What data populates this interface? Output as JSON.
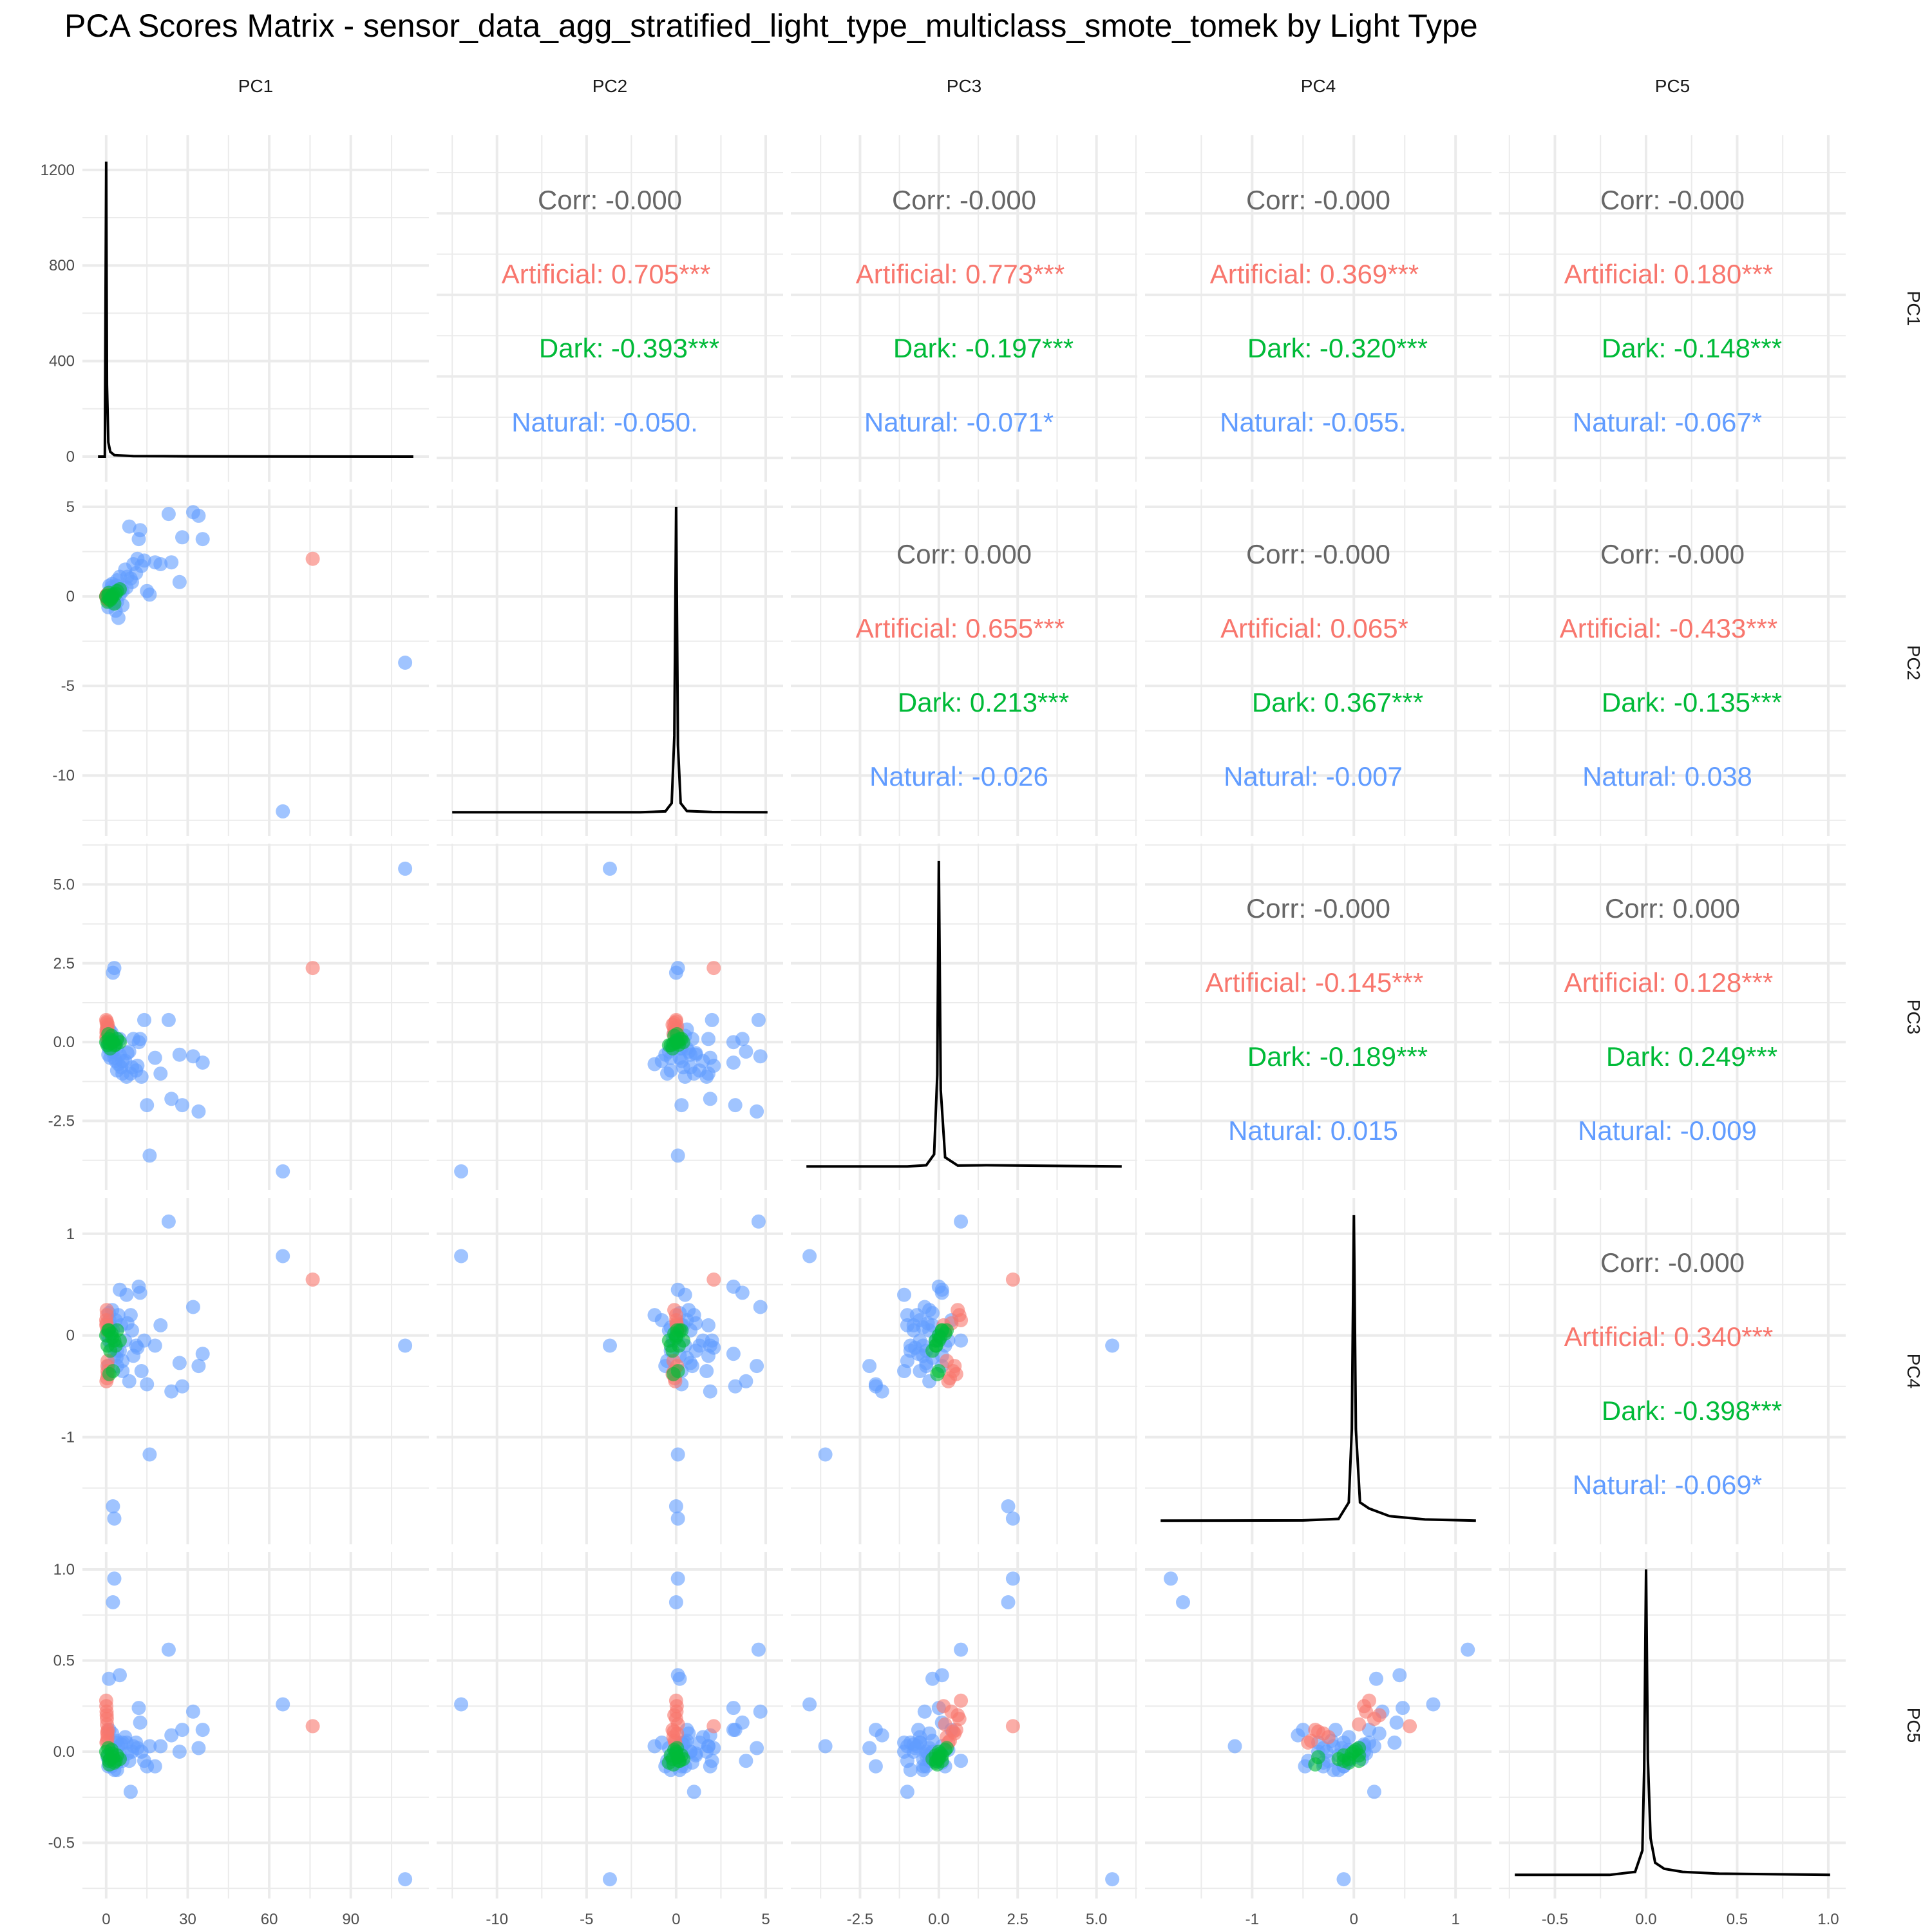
{
  "title": "PCA Scores Matrix - sensor_data_agg_stratified_light_type_multiclass_smote_tomek by Light Type",
  "variables": [
    "PC1",
    "PC2",
    "PC3",
    "PC4",
    "PC5"
  ],
  "colors": {
    "Artificial": "#F8766D",
    "Dark": "#00BA38",
    "Natural": "#619CFF",
    "corr": "#666666",
    "grid": "#EBEBEB",
    "density": "#000000"
  },
  "chart_data": {
    "type": "scatter",
    "groups": [
      "Artificial",
      "Dark",
      "Natural"
    ],
    "axes": {
      "PC1": {
        "lim": [
          -3,
          113
        ],
        "ticks": [
          0,
          30,
          60,
          90
        ]
      },
      "PC2": {
        "lim": [
          -12.5,
          5.1
        ],
        "ticks": [
          -10,
          -5,
          0,
          5
        ]
      },
      "PC3": {
        "lim": [
          -4.2,
          5.8
        ],
        "ticks": [
          -2.5,
          0.0,
          2.5,
          5.0
        ],
        "tick_labels": [
          "-2.5",
          "0.0",
          "2.5",
          "5.0"
        ]
      },
      "PC4": {
        "lim": [
          -1.9,
          1.2
        ],
        "ticks": [
          -1,
          0,
          1
        ]
      },
      "PC5": {
        "lim": [
          -0.72,
          1.01
        ],
        "ticks": [
          -0.5,
          0.0,
          0.5,
          1.0
        ],
        "tick_labels": [
          "-0.5",
          "0.0",
          "0.5",
          "1.0"
        ]
      }
    },
    "pc1_density_axis": {
      "lim": [
        -40,
        1280
      ],
      "ticks": [
        0,
        400,
        800,
        1200
      ]
    },
    "correlations": [
      {
        "row": "PC1",
        "col": "PC2",
        "corr": "Corr: -0.000",
        "Artificial": "Artificial: 0.705***",
        "Dark": "Dark: -0.393***",
        "Natural": "Natural: -0.050."
      },
      {
        "row": "PC1",
        "col": "PC3",
        "corr": "Corr: -0.000",
        "Artificial": "Artificial: 0.773***",
        "Dark": "Dark: -0.197***",
        "Natural": "Natural: -0.071*"
      },
      {
        "row": "PC1",
        "col": "PC4",
        "corr": "Corr: -0.000",
        "Artificial": "Artificial: 0.369***",
        "Dark": "Dark: -0.320***",
        "Natural": "Natural: -0.055."
      },
      {
        "row": "PC1",
        "col": "PC5",
        "corr": "Corr: -0.000",
        "Artificial": "Artificial: 0.180***",
        "Dark": "Dark: -0.148***",
        "Natural": "Natural: -0.067*"
      },
      {
        "row": "PC2",
        "col": "PC3",
        "corr": "Corr: 0.000",
        "Artificial": "Artificial: 0.655***",
        "Dark": "Dark: 0.213***",
        "Natural": "Natural: -0.026"
      },
      {
        "row": "PC2",
        "col": "PC4",
        "corr": "Corr: -0.000",
        "Artificial": "Artificial: 0.065*",
        "Dark": "Dark: 0.367***",
        "Natural": "Natural: -0.007"
      },
      {
        "row": "PC2",
        "col": "PC5",
        "corr": "Corr: -0.000",
        "Artificial": "Artificial: -0.433***",
        "Dark": "Dark: -0.135***",
        "Natural": "Natural: 0.038"
      },
      {
        "row": "PC3",
        "col": "PC4",
        "corr": "Corr: -0.000",
        "Artificial": "Artificial: -0.145***",
        "Dark": "Dark: -0.189***",
        "Natural": "Natural: 0.015"
      },
      {
        "row": "PC3",
        "col": "PC5",
        "corr": "Corr: 0.000",
        "Artificial": "Artificial: 0.128***",
        "Dark": "Dark: 0.249***",
        "Natural": "Natural: -0.009"
      },
      {
        "row": "PC4",
        "col": "PC5",
        "corr": "Corr: -0.000",
        "Artificial": "Artificial: 0.340***",
        "Dark": "Dark: -0.398***",
        "Natural": "Natural: -0.069*"
      }
    ],
    "densities": {
      "PC1": [
        [
          -3,
          0
        ],
        [
          -0.5,
          0
        ],
        [
          0,
          1235
        ],
        [
          0.3,
          300
        ],
        [
          0.8,
          60
        ],
        [
          1.5,
          20
        ],
        [
          3,
          6
        ],
        [
          10,
          2
        ],
        [
          30,
          1
        ],
        [
          113,
          0
        ]
      ],
      "PC2": [
        [
          -12.5,
          0
        ],
        [
          -2,
          0
        ],
        [
          -0.6,
          0.003
        ],
        [
          -0.25,
          0.03
        ],
        [
          -0.1,
          0.25
        ],
        [
          0,
          1
        ],
        [
          0.1,
          0.22
        ],
        [
          0.25,
          0.03
        ],
        [
          0.6,
          0.004
        ],
        [
          2,
          0.001
        ],
        [
          5.1,
          0
        ]
      ],
      "PC3": [
        [
          -4.2,
          0
        ],
        [
          -1,
          0
        ],
        [
          -0.4,
          0.004
        ],
        [
          -0.15,
          0.04
        ],
        [
          -0.05,
          0.3
        ],
        [
          0,
          1
        ],
        [
          0.06,
          0.25
        ],
        [
          0.2,
          0.03
        ],
        [
          0.6,
          0.003
        ],
        [
          1.5,
          0.004
        ],
        [
          5.8,
          0
        ]
      ],
      "PC4": [
        [
          -1.9,
          0
        ],
        [
          -0.5,
          0.001
        ],
        [
          -0.15,
          0.006
        ],
        [
          -0.05,
          0.06
        ],
        [
          -0.02,
          0.3
        ],
        [
          0,
          1
        ],
        [
          0.02,
          0.3
        ],
        [
          0.06,
          0.06
        ],
        [
          0.15,
          0.04
        ],
        [
          0.35,
          0.015
        ],
        [
          0.7,
          0.004
        ],
        [
          1.2,
          0
        ]
      ],
      "PC5": [
        [
          -0.72,
          0
        ],
        [
          -0.2,
          0
        ],
        [
          -0.06,
          0.01
        ],
        [
          -0.02,
          0.08
        ],
        [
          -0.01,
          0.35
        ],
        [
          0,
          1
        ],
        [
          0.01,
          0.38
        ],
        [
          0.025,
          0.12
        ],
        [
          0.05,
          0.04
        ],
        [
          0.1,
          0.02
        ],
        [
          0.2,
          0.01
        ],
        [
          0.4,
          0.004
        ],
        [
          1.01,
          0
        ]
      ]
    },
    "points": {
      "Natural": [
        [
          0.5,
          0.1,
          0.0,
          0.0,
          -0.03
        ],
        [
          1.0,
          -0.2,
          -0.1,
          -0.05,
          -0.05
        ],
        [
          1.5,
          0.3,
          -0.2,
          0.1,
          0.0
        ],
        [
          2.0,
          0.5,
          0.2,
          -0.1,
          -0.08
        ],
        [
          2.5,
          -0.4,
          -0.3,
          0.05,
          0.02
        ],
        [
          3.0,
          0.2,
          -0.5,
          -0.2,
          -0.1
        ],
        [
          3.5,
          -0.8,
          -0.6,
          0.15,
          0.05
        ],
        [
          4.0,
          0.9,
          0.1,
          -0.3,
          -0.06
        ],
        [
          4.5,
          -1.2,
          -0.7,
          0.2,
          0.03
        ],
        [
          5.0,
          1.1,
          -0.4,
          -0.15,
          -0.02
        ],
        [
          5.5,
          0.4,
          -0.8,
          0.1,
          0.04
        ],
        [
          6.0,
          -0.5,
          -1.0,
          -0.25,
          -0.05
        ],
        [
          2.2,
          0.7,
          -0.3,
          0.25,
          0.1
        ],
        [
          1.2,
          0.6,
          0.4,
          0.15,
          0.12
        ],
        [
          0.8,
          -0.6,
          -0.4,
          -0.3,
          -0.08
        ],
        [
          7.0,
          1.5,
          -0.6,
          -0.05,
          0.08
        ],
        [
          7.5,
          0.5,
          -1.1,
          0.4,
          0.05
        ],
        [
          8.5,
          3.9,
          -0.3,
          -0.45,
          -0.05
        ],
        [
          9.0,
          1.0,
          -1.0,
          0.2,
          -0.22
        ],
        [
          10.0,
          1.8,
          0.1,
          -0.2,
          0.03
        ],
        [
          11.0,
          1.3,
          -0.9,
          -0.1,
          0.05
        ],
        [
          12.0,
          3.2,
          0.0,
          0.48,
          0.24
        ],
        [
          12.5,
          3.7,
          0.1,
          0.42,
          0.16
        ],
        [
          13.0,
          1.7,
          -1.1,
          -0.35,
          0.0
        ],
        [
          14.0,
          2.0,
          0.7,
          -0.05,
          -0.05
        ],
        [
          15.0,
          0.3,
          -2.0,
          -0.48,
          -0.08
        ],
        [
          16.0,
          0.1,
          -3.6,
          -1.17,
          0.03
        ],
        [
          18.0,
          1.9,
          -0.5,
          -0.1,
          -0.08
        ],
        [
          20.0,
          1.8,
          -1.0,
          0.1,
          0.03
        ],
        [
          23.0,
          4.6,
          0.7,
          1.12,
          0.56
        ],
        [
          24.0,
          1.9,
          -1.8,
          -0.55,
          0.09
        ],
        [
          27.0,
          0.8,
          -0.4,
          -0.27,
          0.0
        ],
        [
          28.0,
          3.3,
          -2.0,
          -0.5,
          0.12
        ],
        [
          32.0,
          4.7,
          -0.45,
          0.28,
          0.22
        ],
        [
          34.0,
          4.5,
          -2.2,
          -0.3,
          0.02
        ],
        [
          35.5,
          3.2,
          -0.65,
          -0.18,
          0.12
        ],
        [
          65.0,
          -12.0,
          -4.1,
          0.78,
          0.26
        ],
        [
          110.0,
          -3.7,
          5.5,
          -0.1,
          -0.7
        ],
        [
          2.5,
          0.0,
          2.2,
          -1.68,
          0.82
        ],
        [
          3.0,
          0.1,
          2.35,
          -1.8,
          0.95
        ],
        [
          1.0,
          0.2,
          -0.2,
          0.22,
          0.4
        ],
        [
          5.0,
          0.1,
          0.1,
          0.45,
          0.42
        ],
        [
          6.0,
          0.3,
          -0.6,
          -0.35,
          0.05
        ],
        [
          4.0,
          -0.3,
          -0.9,
          -0.15,
          -0.1
        ],
        [
          9.5,
          0.8,
          -0.8,
          0.05,
          0.0
        ],
        [
          2.0,
          -0.1,
          0.3,
          -0.05,
          0.01
        ],
        [
          1.5,
          -0.3,
          -0.5,
          0.08,
          -0.04
        ],
        [
          3.8,
          0.6,
          -0.2,
          -0.22,
          0.06
        ],
        [
          7.8,
          1.1,
          -0.35,
          0.12,
          -0.01
        ],
        [
          11.5,
          2.1,
          -0.75,
          -0.12,
          0.02
        ]
      ],
      "Artificial": [
        [
          0.0,
          0.0,
          0.7,
          0.15,
          0.28
        ],
        [
          0.2,
          -0.1,
          0.6,
          0.25,
          0.2
        ],
        [
          0.4,
          0.05,
          0.5,
          -0.3,
          0.1
        ],
        [
          0.1,
          -0.05,
          0.3,
          -0.45,
          0.05
        ],
        [
          0.3,
          0.1,
          0.2,
          0.05,
          0.15
        ],
        [
          0.6,
          -0.2,
          0.55,
          -0.38,
          0.12
        ],
        [
          0.15,
          0.02,
          0.4,
          0.12,
          0.22
        ],
        [
          0.5,
          -0.15,
          0.25,
          -0.25,
          0.08
        ],
        [
          0.25,
          0.0,
          0.65,
          0.2,
          0.18
        ],
        [
          0.35,
          -0.08,
          0.35,
          -0.42,
          0.06
        ],
        [
          76.0,
          2.1,
          2.35,
          0.55,
          0.14
        ],
        [
          0.05,
          0.03,
          0.15,
          0.1,
          0.25
        ],
        [
          0.45,
          -0.12,
          0.45,
          -0.35,
          0.11
        ]
      ],
      "Dark": [
        [
          0.0,
          0.0,
          0.0,
          0.0,
          0.0
        ],
        [
          0.5,
          -0.3,
          -0.1,
          -0.1,
          -0.02
        ],
        [
          1.0,
          0.2,
          0.1,
          0.05,
          -0.05
        ],
        [
          1.5,
          -0.2,
          -0.2,
          -0.15,
          -0.04
        ],
        [
          2.0,
          -0.1,
          0.2,
          0.02,
          0.01
        ],
        [
          2.5,
          0.1,
          0.0,
          -0.35,
          -0.03
        ],
        [
          3.0,
          -0.4,
          -0.1,
          -0.05,
          -0.06
        ],
        [
          4.0,
          0.3,
          0.1,
          0.05,
          -0.02
        ],
        [
          5.0,
          0.4,
          0.0,
          -0.05,
          -0.04
        ],
        [
          0.8,
          0.05,
          0.25,
          0.05,
          0.02
        ],
        [
          1.2,
          -0.15,
          -0.05,
          -0.38,
          -0.07
        ],
        [
          2.2,
          0.0,
          0.05,
          -0.02,
          -0.01
        ],
        [
          3.5,
          0.15,
          -0.08,
          -0.1,
          -0.05
        ]
      ]
    }
  }
}
